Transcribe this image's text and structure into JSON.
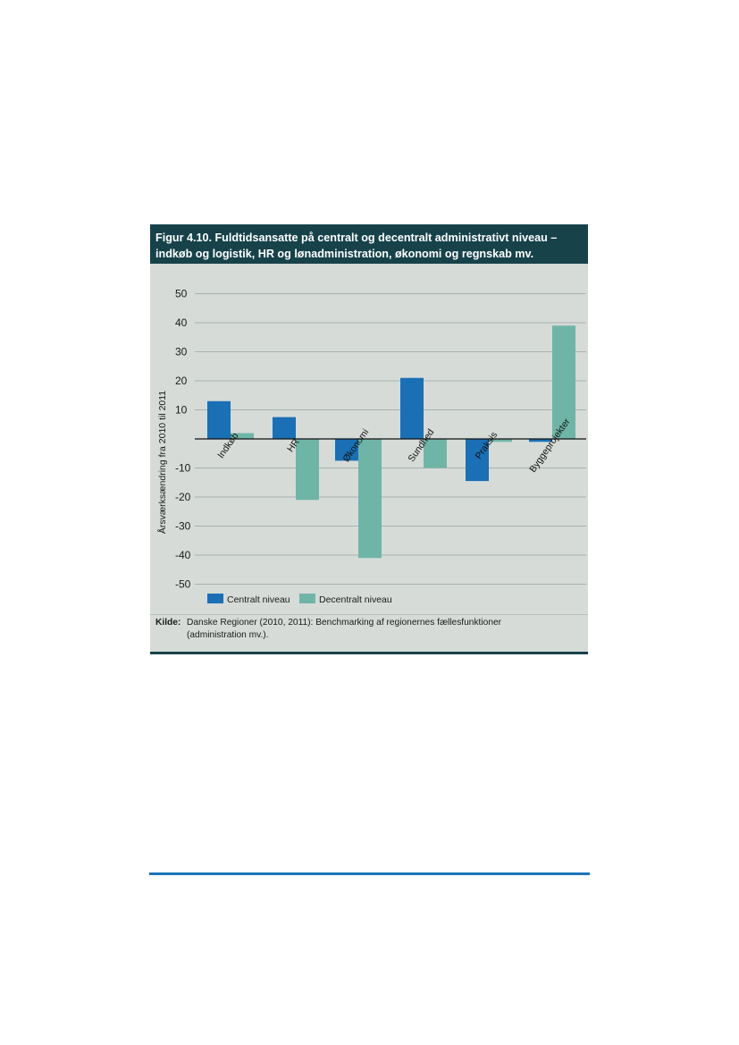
{
  "figure": {
    "title_line1": "Figur 4.10. Fuldtidsansatte på centralt og decentralt administrativt niveau –",
    "title_line2": "indkøb og logistik, HR og lønadministration, økonomi og regnskab mv.",
    "source_label": "Kilde:",
    "source_line1": "Danske Regioner (2010, 2011): Benchmarking af regionernes fællesfunktioner",
    "source_line2": "(administration mv.)."
  },
  "colors": {
    "central": "#1a6fb5",
    "decentral": "#6fb5a7",
    "header_bg": "#17424a",
    "plot_bg": "#d6dbd8",
    "footer_rule": "#1b75b8"
  },
  "chart_data": {
    "type": "bar",
    "title": "Figur 4.10. Fuldtidsansatte på centralt og decentralt administrativt niveau – indkøb og logistik, HR og lønadministration, økonomi og regnskab mv.",
    "xlabel": "",
    "ylabel": "Årsværksændring fra 2010 til 2011",
    "ylim": [
      -55,
      55
    ],
    "yticks": [
      50,
      40,
      30,
      20,
      10,
      -10,
      -20,
      -30,
      -40,
      -50
    ],
    "grid": true,
    "legend_position": "bottom",
    "categories": [
      "Indkøb",
      "HR",
      "Økonomi",
      "Sundhed",
      "Praksis",
      "Byggeprojekter"
    ],
    "series": [
      {
        "name": "Centralt niveau",
        "values": [
          13,
          7.5,
          -7.5,
          21,
          -14.5,
          -1
        ]
      },
      {
        "name": "Decentralt niveau",
        "values": [
          2,
          -21,
          -41,
          -10,
          -1,
          39
        ]
      }
    ]
  }
}
